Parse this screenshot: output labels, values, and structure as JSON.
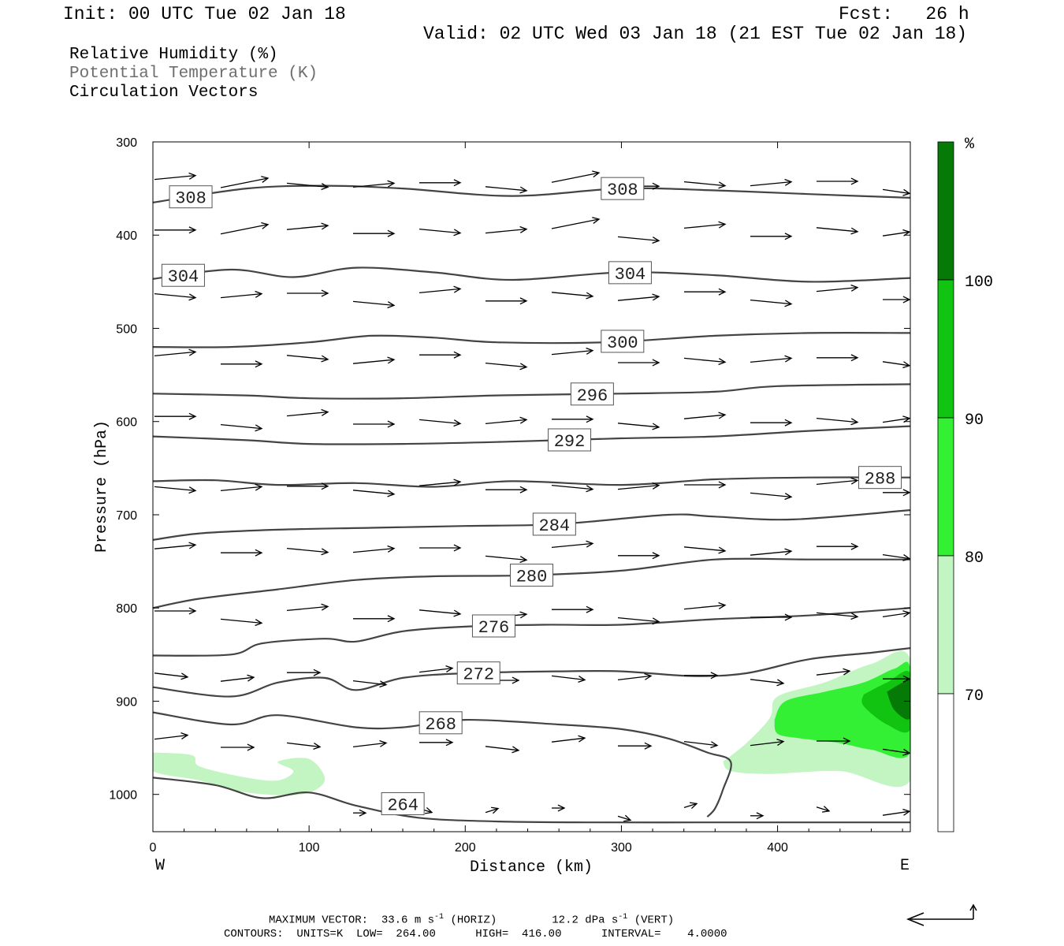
{
  "header": {
    "init": "Init: 00 UTC Tue 02 Jan 18",
    "fcst": "Fcst:   26 h",
    "valid": "Valid: 02 UTC Wed 03 Jan 18 (21 EST Tue 02 Jan 18)"
  },
  "legend": {
    "rh": "Relative Humidity (%)",
    "theta": "Potential Temperature (K)",
    "vectors": "Circulation Vectors"
  },
  "footer": {
    "max_vector": "MAXIMUM VECTOR:  33.6 m s",
    "max_vector_unit_sup": "-1",
    "max_vector_horiz": " (HORIZ)",
    "max_vertical": "12.2 dPa s",
    "max_vertical_sup": "-1",
    "max_vertical_tail": " (VERT)",
    "contours": "CONTOURS:  UNITS=K  LOW=  264.00      HIGH=  416.00      INTERVAL=    4.0000"
  },
  "colors": {
    "rh70": "#c2f5c2",
    "rh80": "#34f034",
    "rh90": "#11c411",
    "rh100": "#067a06",
    "contour": "#444444",
    "vector": "#000000"
  },
  "chart_data": {
    "type": "cross-section",
    "xlabel": "Distance (km)",
    "ylabel": "Pressure (hPa)",
    "xlim": [
      0,
      485
    ],
    "ylim": [
      1040,
      300
    ],
    "x_ticks": [
      0,
      100,
      200,
      300,
      400
    ],
    "y_ticks": [
      300,
      400,
      500,
      600,
      700,
      800,
      900,
      1000
    ],
    "x_end_labels": {
      "left": "W",
      "right": "E"
    },
    "colorbar": {
      "unit": "%",
      "levels": [
        70,
        80,
        90,
        100
      ],
      "colors": [
        "#c2f5c2",
        "#34f034",
        "#11c411",
        "#067a06"
      ]
    },
    "theta_contours": [
      {
        "label": "308",
        "points": [
          [
            0,
            365
          ],
          [
            60,
            350
          ],
          [
            110,
            347
          ],
          [
            160,
            350
          ],
          [
            230,
            358
          ],
          [
            300,
            350
          ],
          [
            360,
            352
          ],
          [
            420,
            356
          ],
          [
            485,
            360
          ]
        ]
      },
      {
        "label": "304",
        "points": [
          [
            0,
            447
          ],
          [
            50,
            437
          ],
          [
            90,
            445
          ],
          [
            130,
            435
          ],
          [
            180,
            440
          ],
          [
            230,
            448
          ],
          [
            300,
            440
          ],
          [
            360,
            443
          ],
          [
            420,
            450
          ],
          [
            485,
            446
          ]
        ]
      },
      {
        "label": "300",
        "points": [
          [
            0,
            520
          ],
          [
            50,
            520
          ],
          [
            100,
            515
          ],
          [
            140,
            508
          ],
          [
            180,
            510
          ],
          [
            220,
            515
          ],
          [
            290,
            515
          ],
          [
            360,
            508
          ],
          [
            420,
            505
          ],
          [
            485,
            505
          ]
        ]
      },
      {
        "label": "296",
        "points": [
          [
            0,
            570
          ],
          [
            60,
            572
          ],
          [
            100,
            575
          ],
          [
            160,
            575
          ],
          [
            220,
            572
          ],
          [
            300,
            570
          ],
          [
            360,
            568
          ],
          [
            400,
            562
          ],
          [
            485,
            560
          ]
        ]
      },
      {
        "label": "292",
        "points": [
          [
            0,
            616
          ],
          [
            60,
            620
          ],
          [
            100,
            624
          ],
          [
            160,
            624
          ],
          [
            220,
            622
          ],
          [
            300,
            618
          ],
          [
            360,
            616
          ],
          [
            420,
            610
          ],
          [
            485,
            605
          ]
        ]
      },
      {
        "label": "288",
        "points": [
          [
            0,
            664
          ],
          [
            40,
            663
          ],
          [
            80,
            668
          ],
          [
            130,
            666
          ],
          [
            180,
            670
          ],
          [
            230,
            664
          ],
          [
            300,
            668
          ],
          [
            360,
            662
          ],
          [
            420,
            660
          ],
          [
            485,
            660
          ]
        ]
      },
      {
        "label": "284",
        "points": [
          [
            0,
            727
          ],
          [
            30,
            720
          ],
          [
            80,
            716
          ],
          [
            140,
            714
          ],
          [
            200,
            712
          ],
          [
            260,
            710
          ],
          [
            330,
            700
          ],
          [
            360,
            702
          ],
          [
            410,
            705
          ],
          [
            485,
            695
          ]
        ]
      },
      {
        "label": "280",
        "points": [
          [
            0,
            800
          ],
          [
            30,
            790
          ],
          [
            80,
            780
          ],
          [
            130,
            770
          ],
          [
            180,
            766
          ],
          [
            240,
            765
          ],
          [
            300,
            760
          ],
          [
            360,
            748
          ],
          [
            420,
            748
          ],
          [
            485,
            748
          ]
        ]
      },
      {
        "label": "276",
        "points": [
          [
            0,
            851
          ],
          [
            50,
            850
          ],
          [
            70,
            838
          ],
          [
            110,
            833
          ],
          [
            130,
            836
          ],
          [
            160,
            825
          ],
          [
            200,
            820
          ],
          [
            250,
            818
          ],
          [
            300,
            818
          ],
          [
            360,
            812
          ],
          [
            420,
            808
          ],
          [
            485,
            800
          ]
        ]
      },
      {
        "label": "272",
        "points": [
          [
            0,
            885
          ],
          [
            50,
            895
          ],
          [
            80,
            880
          ],
          [
            110,
            875
          ],
          [
            130,
            888
          ],
          [
            160,
            875
          ],
          [
            200,
            870
          ],
          [
            260,
            868
          ],
          [
            300,
            868
          ],
          [
            345,
            873
          ],
          [
            380,
            870
          ],
          [
            420,
            855
          ],
          [
            460,
            848
          ],
          [
            485,
            843
          ]
        ]
      },
      {
        "label": "268",
        "points": [
          [
            0,
            912
          ],
          [
            50,
            925
          ],
          [
            80,
            915
          ],
          [
            130,
            928
          ],
          [
            160,
            928
          ],
          [
            200,
            920
          ],
          [
            260,
            925
          ],
          [
            300,
            930
          ],
          [
            330,
            940
          ],
          [
            355,
            955
          ],
          [
            370,
            965
          ],
          [
            365,
            995
          ],
          [
            360,
            1015
          ],
          [
            355,
            1024
          ]
        ]
      },
      {
        "label": "264",
        "points": [
          [
            0,
            982
          ],
          [
            40,
            990
          ],
          [
            70,
            1004
          ],
          [
            100,
            998
          ],
          [
            130,
            1012
          ],
          [
            170,
            1025
          ],
          [
            220,
            1029
          ],
          [
            280,
            1030
          ],
          [
            350,
            1030
          ],
          [
            420,
            1030
          ],
          [
            485,
            1030
          ]
        ]
      }
    ]
  }
}
